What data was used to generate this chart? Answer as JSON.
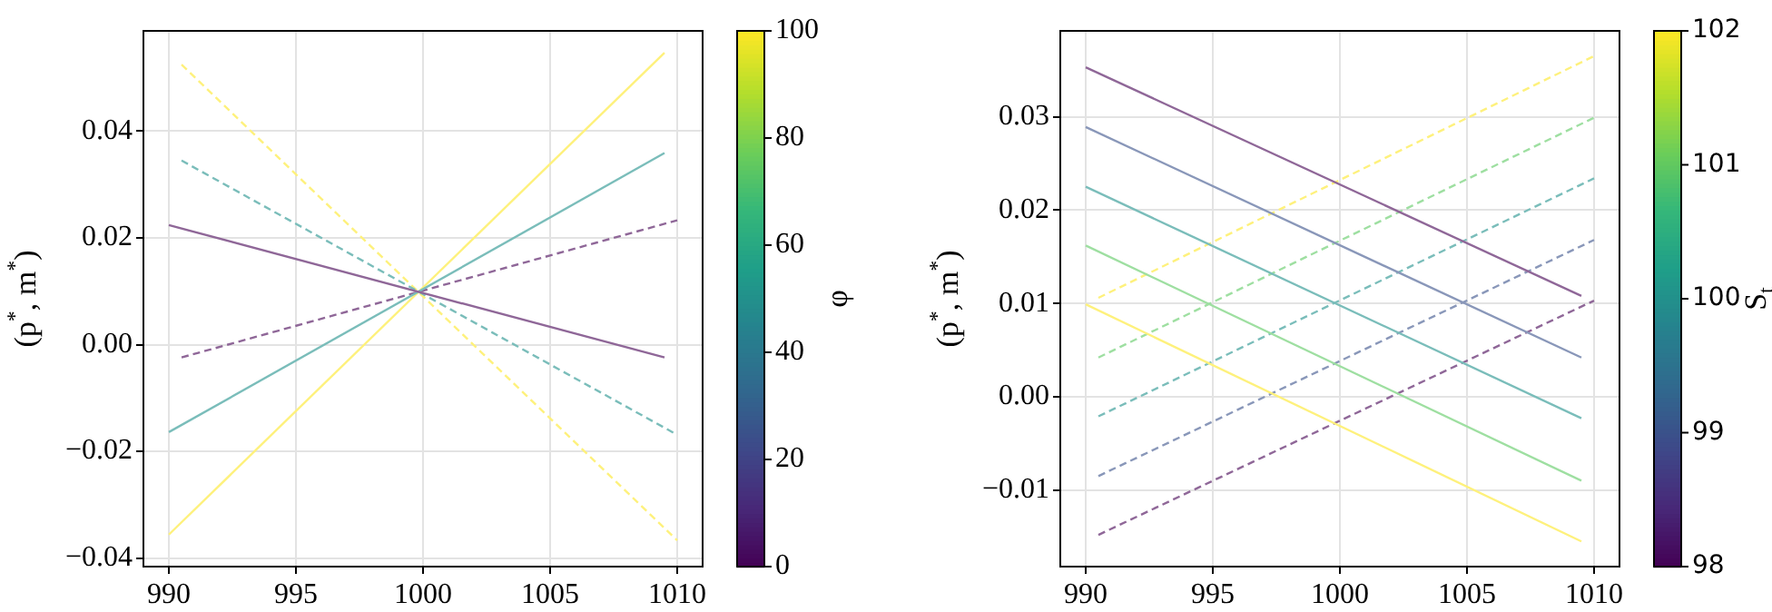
{
  "chart_data": [
    {
      "type": "line",
      "ylabel": "(p$^{*}$, m$^{*}$)",
      "clabel": "φ",
      "clim": [
        0,
        100
      ],
      "cticks": [
        0,
        20,
        40,
        60,
        80,
        100
      ],
      "grid": true,
      "marker": "none",
      "xlim": [
        989,
        1011
      ],
      "xticks": [
        990,
        995,
        1000,
        1005,
        1010
      ],
      "ylim": [
        -0.0416,
        0.0588
      ],
      "yticks": [
        {
          "value": -0.04,
          "label": "−0.04"
        },
        {
          "value": -0.02,
          "label": "−0.02"
        },
        {
          "value": 0,
          "label": "0.00"
        },
        {
          "value": 0.02,
          "label": "0.02"
        },
        {
          "value": 0.04,
          "label": "0.04"
        }
      ],
      "series": [
        {
          "color": "#8f6798",
          "line_style": "solid",
          "x": [
            990,
            1009.5
          ],
          "values": [
            0.0224,
            -0.0024
          ]
        },
        {
          "color": "#7abdba",
          "line_style": "solid",
          "x": [
            990,
            1009.5
          ],
          "values": [
            -0.0164,
            0.0359
          ]
        },
        {
          "color": "#fef17c",
          "line_style": "solid",
          "x": [
            990,
            1009.5
          ],
          "values": [
            -0.0356,
            0.0547
          ]
        },
        {
          "color": "#8f6798",
          "line_style": "dashed",
          "x": [
            990.5,
            1010
          ],
          "values": [
            -0.0024,
            0.0233
          ]
        },
        {
          "color": "#7abdba",
          "line_style": "dashed",
          "x": [
            990.5,
            1010
          ],
          "values": [
            0.0345,
            -0.0169
          ]
        },
        {
          "color": "#fef17c",
          "line_style": "dashed",
          "x": [
            990.5,
            1010
          ],
          "values": [
            0.0525,
            -0.0367
          ]
        }
      ]
    },
    {
      "type": "line",
      "ylabel": "(p$^{*}$, m$^{*}$)",
      "clabel": "S$_{t}$",
      "clim": [
        98,
        102
      ],
      "cticks": [
        98,
        99,
        100,
        101,
        102
      ],
      "grid": true,
      "marker": "none",
      "xlim": [
        989,
        1011
      ],
      "xticks": [
        990,
        995,
        1000,
        1005,
        1010
      ],
      "ylim": [
        -0.0182,
        0.0392
      ],
      "yticks": [
        {
          "value": -0.01,
          "label": "−0.01"
        },
        {
          "value": 0,
          "label": "0.00"
        },
        {
          "value": 0.01,
          "label": "0.01"
        },
        {
          "value": 0.02,
          "label": "0.02"
        },
        {
          "value": 0.03,
          "label": "0.03"
        }
      ],
      "series": [
        {
          "color": "#8f6798",
          "line_style": "solid",
          "x": [
            990,
            1009.5
          ],
          "values": [
            0.0353,
            0.0108
          ]
        },
        {
          "color": "#8997b9",
          "line_style": "solid",
          "x": [
            990,
            1009.5
          ],
          "values": [
            0.0289,
            0.0042
          ]
        },
        {
          "color": "#7abdba",
          "line_style": "solid",
          "x": [
            990,
            1009.5
          ],
          "values": [
            0.0225,
            -0.0023
          ]
        },
        {
          "color": "#9edfa1",
          "line_style": "solid",
          "x": [
            990,
            1009.5
          ],
          "values": [
            0.0162,
            -0.009
          ]
        },
        {
          "color": "#fef17c",
          "line_style": "solid",
          "x": [
            990,
            1009.5
          ],
          "values": [
            0.0099,
            -0.0155
          ]
        },
        {
          "color": "#fef17c",
          "line_style": "dashed",
          "x": [
            990.5,
            1010
          ],
          "values": [
            0.0106,
            0.0365
          ]
        },
        {
          "color": "#9edfa1",
          "line_style": "dashed",
          "x": [
            990.5,
            1010
          ],
          "values": [
            0.0042,
            0.0299
          ]
        },
        {
          "color": "#7abdba",
          "line_style": "dashed",
          "x": [
            990.5,
            1010
          ],
          "values": [
            -0.0021,
            0.0234
          ]
        },
        {
          "color": "#8997b9",
          "line_style": "dashed",
          "x": [
            990.5,
            1010
          ],
          "values": [
            -0.0085,
            0.0168
          ]
        },
        {
          "color": "#8f6798",
          "line_style": "dashed",
          "x": [
            990.5,
            1010
          ],
          "values": [
            -0.0148,
            0.0103
          ]
        }
      ]
    }
  ]
}
